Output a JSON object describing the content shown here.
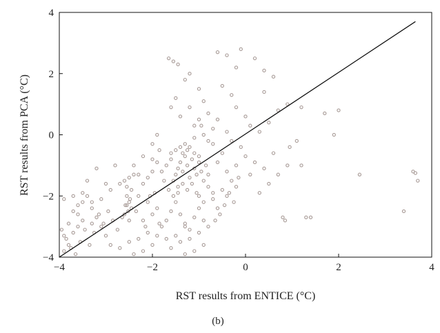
{
  "chart_data": {
    "type": "scatter",
    "xlabel": "RST results from ENTICE (°C)",
    "ylabel": "RST results from PCA (°C)",
    "panel_label": "(b)",
    "xlim": [
      -4,
      4
    ],
    "ylim": [
      -4,
      4
    ],
    "xticks": [
      "−4",
      "−2",
      "0",
      "2",
      "4"
    ],
    "yticks": [
      "−4",
      "−2",
      "0",
      "2",
      "4"
    ],
    "grid": false,
    "legend": "none",
    "marker": {
      "shape": "open-circle",
      "color": "#a79a96"
    },
    "line_color": "#111111",
    "fit_line": {
      "x": [
        -4.0,
        3.65
      ],
      "y": [
        -4.0,
        3.7
      ]
    },
    "points": [
      [
        -3.9,
        -3.8
      ],
      [
        -3.8,
        -3.6
      ],
      [
        -3.7,
        -3.2
      ],
      [
        -3.6,
        -3.0
      ],
      [
        -3.5,
        -2.8
      ],
      [
        -3.9,
        -3.3
      ],
      [
        -3.8,
        -2.9
      ],
      [
        -3.7,
        -2.5
      ],
      [
        -3.6,
        -2.3
      ],
      [
        -3.5,
        -2.2
      ],
      [
        -3.4,
        -2.0
      ],
      [
        -3.3,
        -2.4
      ],
      [
        -3.2,
        -2.7
      ],
      [
        -3.1,
        -3.0
      ],
      [
        -3.0,
        -3.3
      ],
      [
        -3.95,
        -3.1
      ],
      [
        -3.85,
        -3.4
      ],
      [
        -3.75,
        -3.7
      ],
      [
        -3.65,
        -3.9
      ],
      [
        -3.55,
        -3.5
      ],
      [
        -3.45,
        -3.1
      ],
      [
        -3.35,
        -3.6
      ],
      [
        -3.25,
        -3.2
      ],
      [
        -3.15,
        -2.6
      ],
      [
        -3.05,
        -2.9
      ],
      [
        -2.95,
        -2.5
      ],
      [
        -2.85,
        -2.8
      ],
      [
        -2.75,
        -3.1
      ],
      [
        -2.65,
        -2.7
      ],
      [
        -2.55,
        -2.3
      ],
      [
        -3.9,
        -2.1
      ],
      [
        -3.7,
        -2.0
      ],
      [
        -3.5,
        -1.9
      ],
      [
        -3.3,
        -2.2
      ],
      [
        -3.1,
        -2.1
      ],
      [
        -2.9,
        -1.8
      ],
      [
        -2.7,
        -1.6
      ],
      [
        -2.6,
        -1.5
      ],
      [
        -2.5,
        -1.4
      ],
      [
        -2.4,
        -1.3
      ],
      [
        -2.55,
        -2.0
      ],
      [
        -2.5,
        -2.2
      ],
      [
        -2.45,
        -2.4
      ],
      [
        -2.6,
        -2.6
      ],
      [
        -2.5,
        -2.8
      ],
      [
        -2.45,
        -1.8
      ],
      [
        -2.55,
        -1.7
      ],
      [
        -2.52,
        -2.5
      ],
      [
        -2.48,
        -2.1
      ],
      [
        -2.58,
        -2.3
      ],
      [
        -2.9,
        -3.6
      ],
      [
        -2.7,
        -3.7
      ],
      [
        -2.5,
        -3.5
      ],
      [
        -2.3,
        -3.4
      ],
      [
        -2.1,
        -3.2
      ],
      [
        -2.0,
        -3.6
      ],
      [
        -1.9,
        -3.3
      ],
      [
        -1.8,
        -3.0
      ],
      [
        -2.2,
        -3.8
      ],
      [
        -2.4,
        -3.9
      ],
      [
        -2.2,
        -2.8
      ],
      [
        -2.0,
        -2.6
      ],
      [
        -1.9,
        -2.4
      ],
      [
        -2.1,
        -2.2
      ],
      [
        -2.3,
        -2.0
      ],
      [
        -1.85,
        -2.9
      ],
      [
        -2.15,
        -3.0
      ],
      [
        -2.35,
        -2.5
      ],
      [
        -2.05,
        -2.0
      ],
      [
        -1.95,
        -1.9
      ],
      [
        -1.7,
        -2.8
      ],
      [
        -1.6,
        -2.5
      ],
      [
        -1.5,
        -2.2
      ],
      [
        -1.4,
        -2.6
      ],
      [
        -1.3,
        -2.9
      ],
      [
        -1.2,
        -3.1
      ],
      [
        -1.1,
        -2.7
      ],
      [
        -1.0,
        -2.4
      ],
      [
        -0.9,
        -2.8
      ],
      [
        -0.8,
        -3.0
      ],
      [
        -1.5,
        -3.3
      ],
      [
        -1.4,
        -3.5
      ],
      [
        -1.3,
        -3.0
      ],
      [
        -1.2,
        -3.4
      ],
      [
        -1.0,
        -3.2
      ],
      [
        -0.9,
        -3.6
      ],
      [
        -1.6,
        -3.7
      ],
      [
        -1.7,
        -3.4
      ],
      [
        -1.1,
        -3.8
      ],
      [
        -1.3,
        -3.9
      ],
      [
        -1.8,
        -1.2
      ],
      [
        -1.7,
        -1.0
      ],
      [
        -1.6,
        -0.8
      ],
      [
        -1.5,
        -1.3
      ],
      [
        -1.45,
        -1.1
      ],
      [
        -1.4,
        -0.9
      ],
      [
        -1.35,
        -1.2
      ],
      [
        -1.3,
        -0.7
      ],
      [
        -1.25,
        -1.0
      ],
      [
        -1.2,
        -1.4
      ],
      [
        -1.15,
        -0.8
      ],
      [
        -1.1,
        -1.1
      ],
      [
        -1.05,
        -1.3
      ],
      [
        -1.0,
        -0.9
      ],
      [
        -0.95,
        -1.2
      ],
      [
        -0.9,
        -1.5
      ],
      [
        -0.85,
        -1.0
      ],
      [
        -0.8,
        -1.3
      ],
      [
        -1.55,
        -1.5
      ],
      [
        -1.45,
        -1.7
      ],
      [
        -1.35,
        -1.6
      ],
      [
        -1.25,
        -1.8
      ],
      [
        -1.15,
        -1.6
      ],
      [
        -1.05,
        -1.9
      ],
      [
        -1.75,
        -1.5
      ],
      [
        -1.65,
        -1.8
      ],
      [
        -1.55,
        -2.0
      ],
      [
        -1.45,
        -1.9
      ],
      [
        -1.35,
        -0.6
      ],
      [
        -1.25,
        -0.5
      ],
      [
        -1.2,
        -0.4
      ],
      [
        -1.3,
        -0.3
      ],
      [
        -1.4,
        -0.4
      ],
      [
        -1.5,
        -0.5
      ],
      [
        -1.6,
        -0.6
      ],
      [
        -1.1,
        -0.6
      ],
      [
        -1.0,
        -0.7
      ],
      [
        -1.9,
        -0.9
      ],
      [
        -2.0,
        -0.8
      ],
      [
        -1.85,
        -0.5
      ],
      [
        -1.6,
        0.9
      ],
      [
        -1.5,
        1.2
      ],
      [
        -1.3,
        1.8
      ],
      [
        -1.2,
        2.0
      ],
      [
        -1.0,
        1.5
      ],
      [
        -0.9,
        1.1
      ],
      [
        -0.8,
        0.7
      ],
      [
        -1.4,
        0.6
      ],
      [
        -1.1,
        0.3
      ],
      [
        -0.7,
        0.2
      ],
      [
        -1.65,
        2.5
      ],
      [
        -1.55,
        2.4
      ],
      [
        -1.45,
        2.3
      ],
      [
        -0.6,
        2.7
      ],
      [
        -0.4,
        2.6
      ],
      [
        -0.1,
        2.8
      ],
      [
        -0.2,
        2.2
      ],
      [
        0.2,
        2.5
      ],
      [
        0.4,
        2.1
      ],
      [
        0.6,
        1.9
      ],
      [
        -0.5,
        1.6
      ],
      [
        -0.3,
        1.3
      ],
      [
        -0.2,
        0.9
      ],
      [
        0.0,
        0.6
      ],
      [
        0.1,
        0.3
      ],
      [
        0.3,
        0.1
      ],
      [
        0.5,
        0.4
      ],
      [
        0.7,
        0.8
      ],
      [
        0.9,
        1.0
      ],
      [
        0.4,
        1.4
      ],
      [
        -0.6,
        0.5
      ],
      [
        -0.4,
        0.1
      ],
      [
        -0.3,
        -0.2
      ],
      [
        -0.1,
        -0.4
      ],
      [
        0.0,
        -0.7
      ],
      [
        0.2,
        -0.9
      ],
      [
        0.4,
        -1.1
      ],
      [
        0.6,
        -0.6
      ],
      [
        0.1,
        -1.3
      ],
      [
        -0.2,
        -1.0
      ],
      [
        -0.7,
        -0.3
      ],
      [
        -0.5,
        -0.6
      ],
      [
        -0.6,
        -0.9
      ],
      [
        -0.4,
        -1.2
      ],
      [
        -0.3,
        -1.5
      ],
      [
        -0.5,
        -1.8
      ],
      [
        -0.7,
        -2.1
      ],
      [
        -0.6,
        -2.4
      ],
      [
        -0.4,
        -2.0
      ],
      [
        -0.2,
        -1.7
      ],
      [
        -0.8,
        -1.7
      ],
      [
        -0.7,
        -1.9
      ],
      [
        -0.9,
        -2.2
      ],
      [
        -1.0,
        -2.0
      ],
      [
        -0.55,
        -2.6
      ],
      [
        -0.65,
        -2.8
      ],
      [
        -0.45,
        -2.3
      ],
      [
        -0.35,
        -1.9
      ],
      [
        -0.25,
        -2.2
      ],
      [
        -0.15,
        -1.4
      ],
      [
        -2.0,
        -0.3
      ],
      [
        -1.9,
        0.0
      ],
      [
        -2.2,
        -0.7
      ],
      [
        -2.4,
        -1.0
      ],
      [
        -1.2,
        0.9
      ],
      [
        -1.0,
        0.5
      ],
      [
        -0.9,
        0.0
      ],
      [
        -0.8,
        -0.2
      ],
      [
        -1.1,
        -0.1
      ],
      [
        -0.95,
        0.3
      ],
      [
        -3.2,
        -1.1
      ],
      [
        -2.8,
        -1.0
      ],
      [
        -2.3,
        -1.3
      ],
      [
        -3.0,
        -1.6
      ],
      [
        -3.4,
        -1.5
      ],
      [
        -2.2,
        -1.6
      ],
      [
        -2.1,
        -1.4
      ],
      [
        -3.6,
        -2.6
      ],
      [
        -3.3,
        -2.9
      ],
      [
        -2.0,
        -1.2
      ],
      [
        0.8,
        -2.7
      ],
      [
        0.85,
        -2.8
      ],
      [
        1.2,
        -1.0
      ],
      [
        1.3,
        -2.7
      ],
      [
        1.4,
        -2.7
      ],
      [
        1.7,
        0.7
      ],
      [
        1.9,
        0.0
      ],
      [
        2.0,
        0.8
      ],
      [
        1.2,
        0.9
      ],
      [
        2.45,
        -1.3
      ],
      [
        3.4,
        -2.5
      ],
      [
        3.6,
        -1.2
      ],
      [
        3.65,
        -1.25
      ],
      [
        3.7,
        -1.5
      ],
      [
        0.9,
        -1.0
      ],
      [
        0.7,
        -1.3
      ],
      [
        0.5,
        -1.6
      ],
      [
        0.3,
        -1.9
      ],
      [
        0.95,
        -0.4
      ],
      [
        1.1,
        -0.2
      ]
    ]
  }
}
